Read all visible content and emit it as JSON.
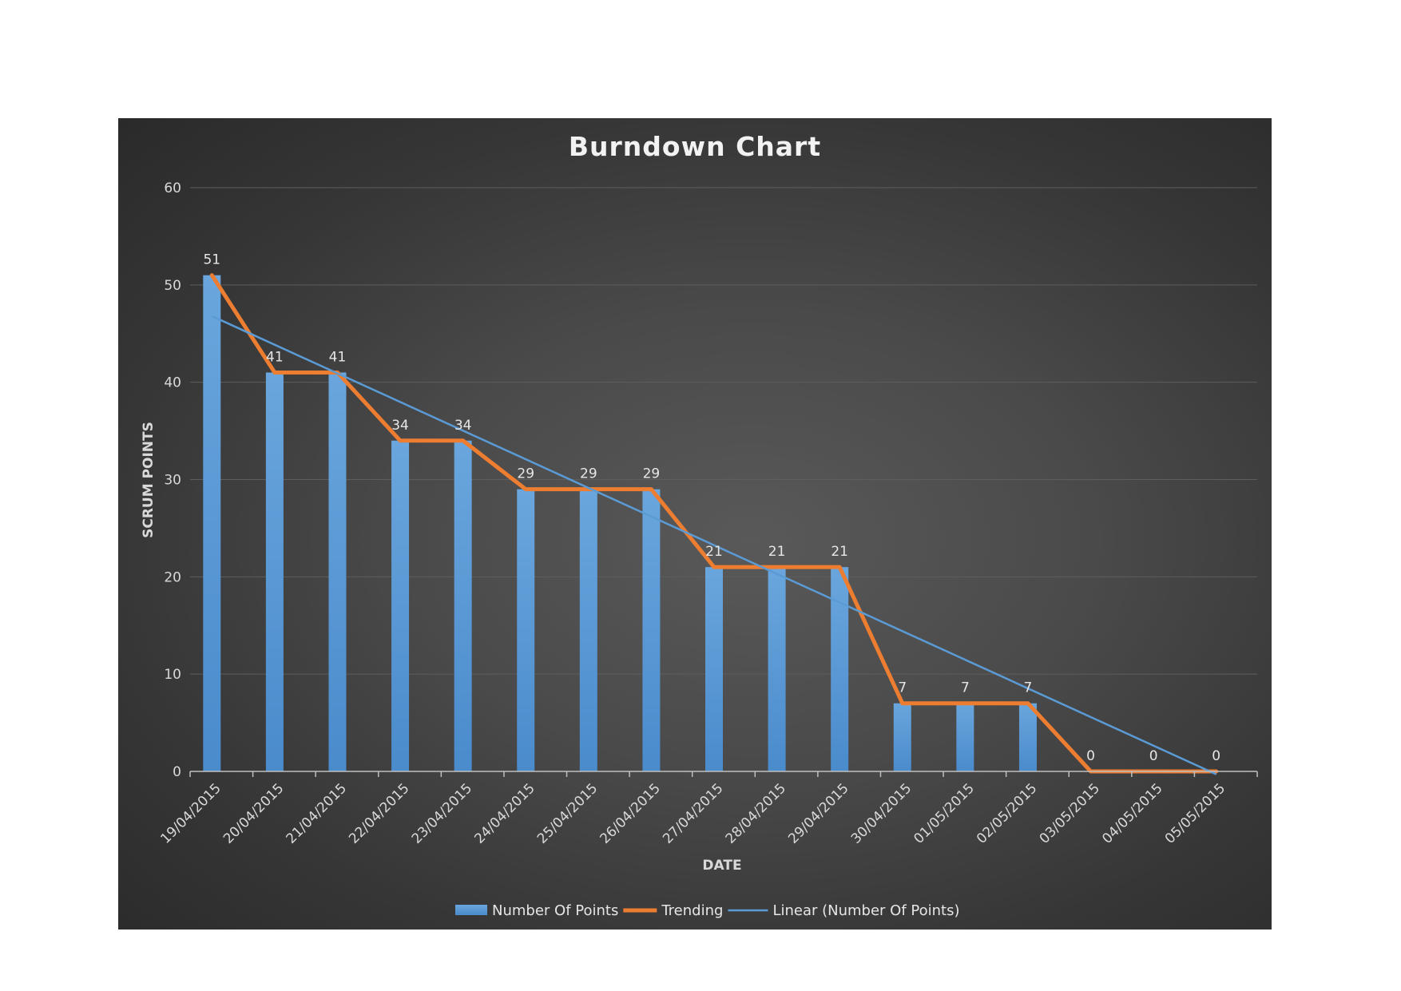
{
  "colors": {
    "bars": "#5b9bd5",
    "trending": "#ed7d31",
    "linear": "#5b9bd5",
    "text": "#d9d9d9"
  },
  "chart_data": {
    "type": "bar",
    "title": "Burndown Chart",
    "xlabel": "DATE",
    "ylabel": "SCRUM POINTS",
    "ylim": [
      0,
      60
    ],
    "yticks": [
      0,
      10,
      20,
      30,
      40,
      50,
      60
    ],
    "grid": true,
    "legend_position": "bottom",
    "categories": [
      "19/04/2015",
      "20/04/2015",
      "21/04/2015",
      "22/04/2015",
      "23/04/2015",
      "24/04/2015",
      "25/04/2015",
      "26/04/2015",
      "27/04/2015",
      "28/04/2015",
      "29/04/2015",
      "30/04/2015",
      "01/05/2015",
      "02/05/2015",
      "03/05/2015",
      "04/05/2015",
      "05/05/2015"
    ],
    "series": [
      {
        "name": "Number Of Points",
        "type": "bar",
        "values": [
          51,
          41,
          41,
          34,
          34,
          29,
          29,
          29,
          21,
          21,
          21,
          7,
          7,
          7,
          0,
          0,
          0
        ],
        "data_labels": true
      },
      {
        "name": "Trending",
        "type": "line",
        "values": [
          51,
          41,
          41,
          34,
          34,
          29,
          29,
          29,
          21,
          21,
          21,
          7,
          7,
          7,
          0,
          0,
          0
        ]
      },
      {
        "name": "Linear (Number Of Points)",
        "type": "trendline",
        "start": 46.8,
        "end": -0.3
      }
    ]
  }
}
